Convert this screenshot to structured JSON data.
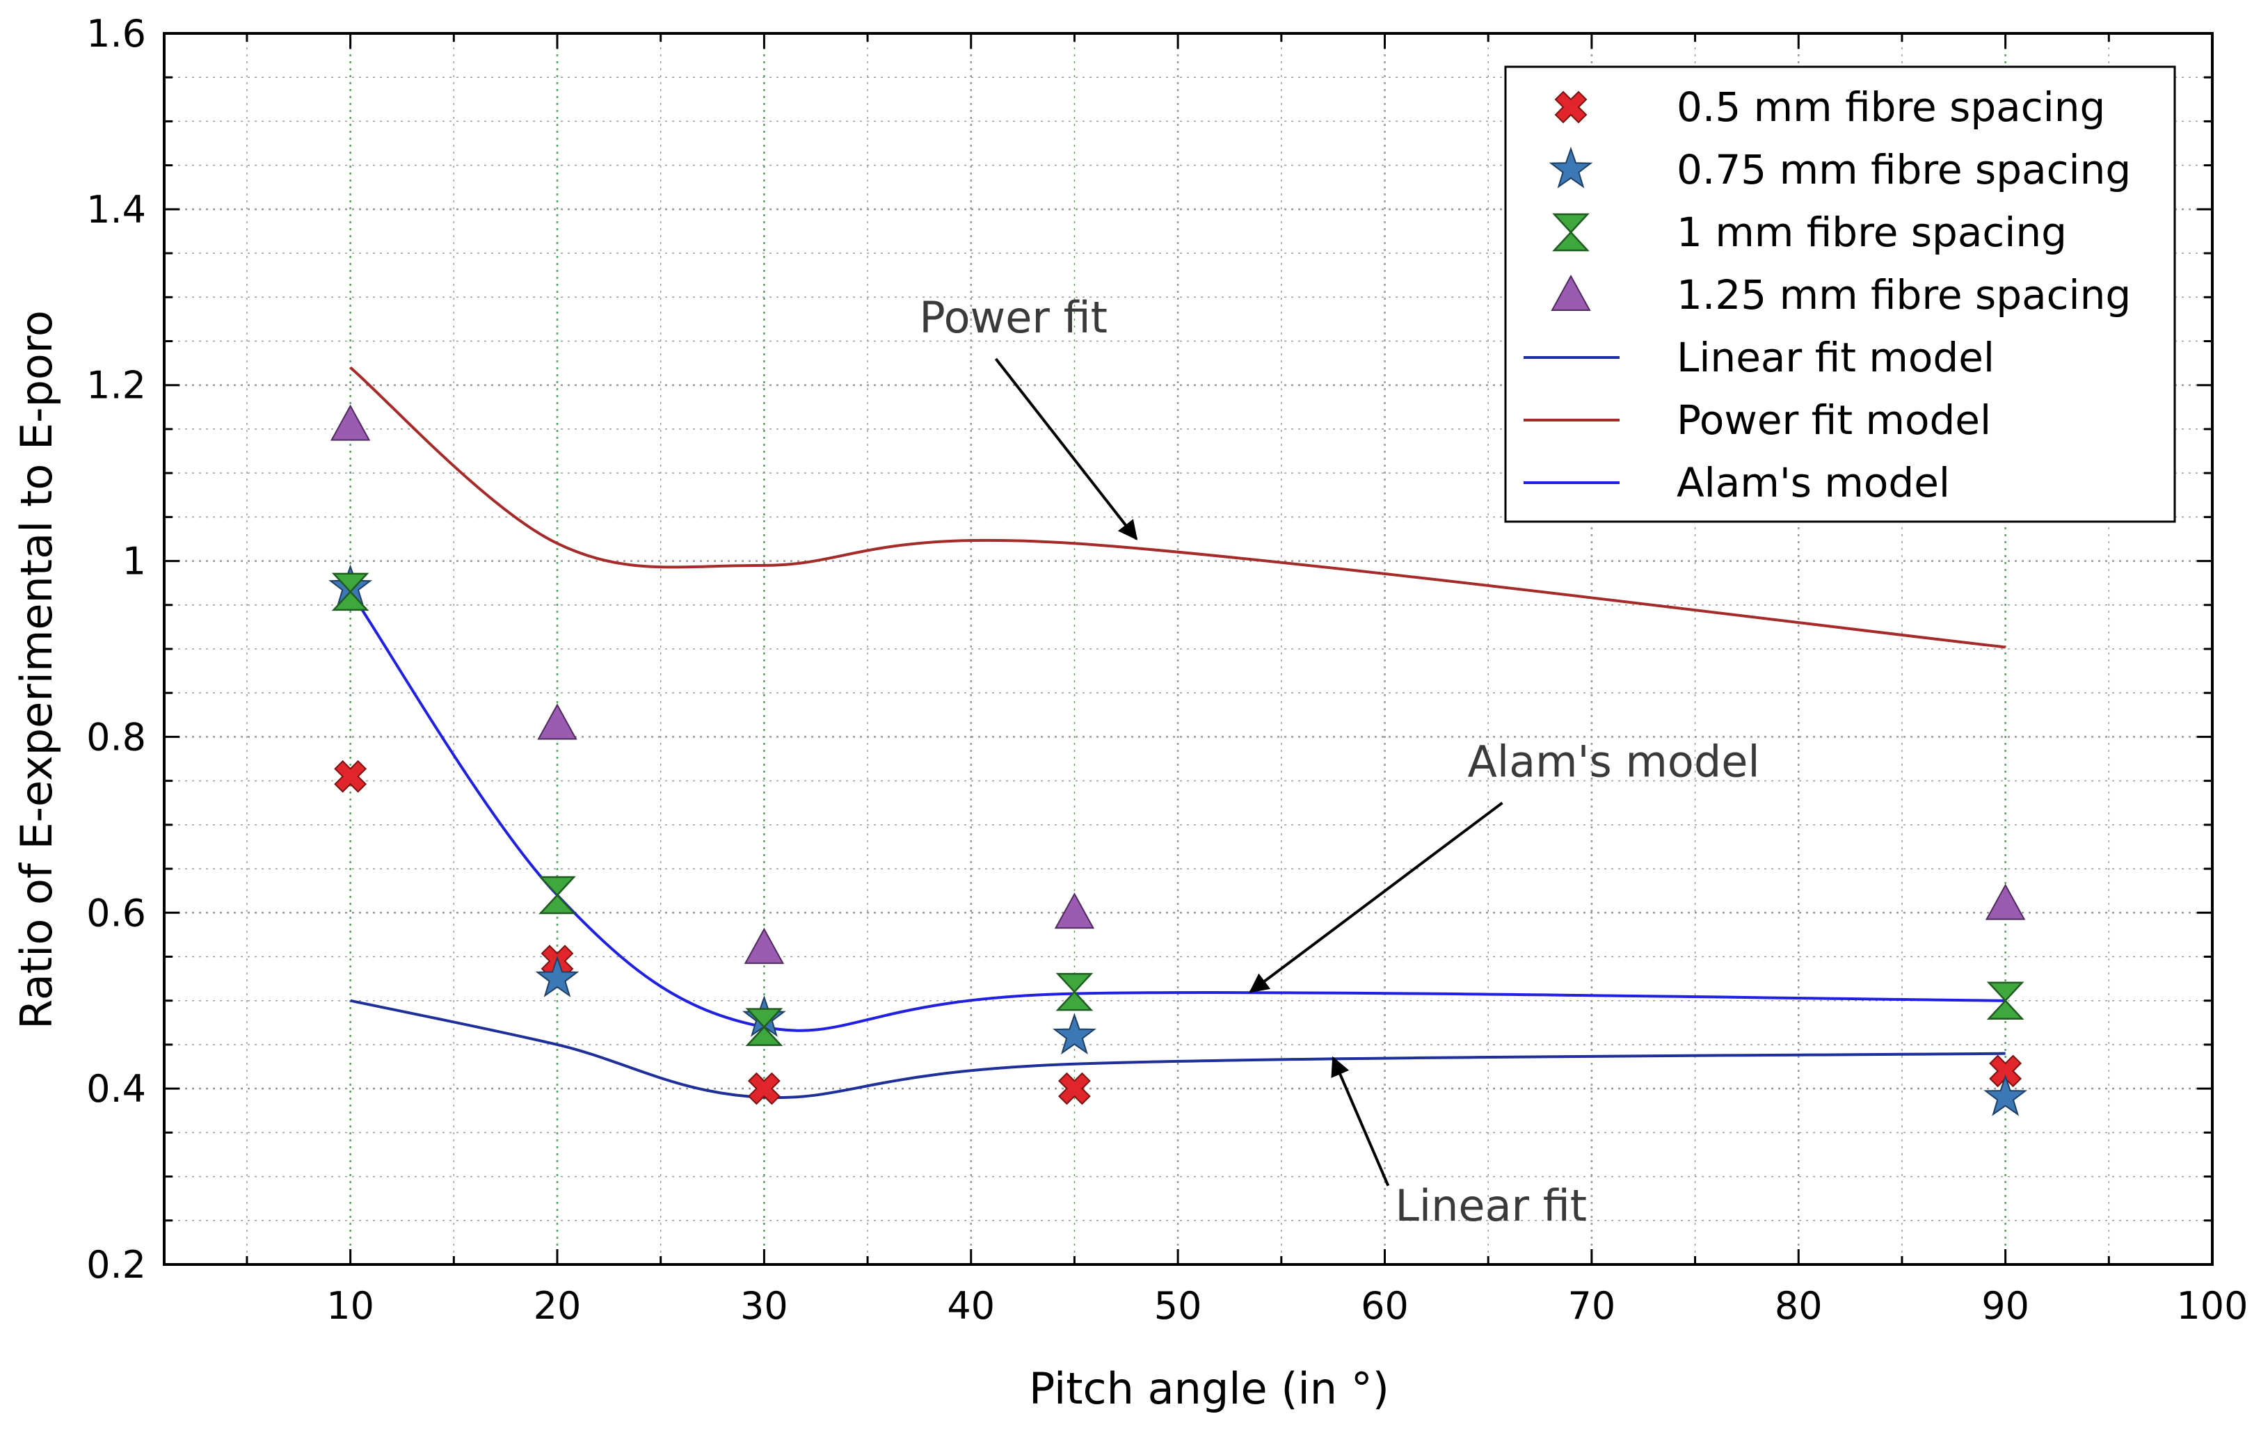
{
  "chart_data": {
    "type": "scatter",
    "title": "",
    "xlabel": "Pitch angle (in °)",
    "ylabel": "Ratio of  E-experimental to  E-poro",
    "xlim": [
      1,
      100
    ],
    "ylim": [
      0.2,
      1.6
    ],
    "x_ticks": [
      10,
      20,
      30,
      40,
      50,
      60,
      70,
      80,
      90,
      100
    ],
    "x_tick_labels": [
      "10",
      "20",
      "30",
      "40",
      "50",
      "60",
      "70",
      "80",
      "90",
      "100"
    ],
    "y_ticks": [
      0.2,
      0.4,
      0.6,
      0.8,
      1.0,
      1.2,
      1.4,
      1.6
    ],
    "y_tick_labels": [
      "0.2",
      "0.4",
      "0.6",
      "0.8",
      "1",
      "1.2",
      "1.4",
      "1.6"
    ],
    "grid": true,
    "legend_position": "top-right",
    "series": [
      {
        "name": "0.5 mm fibre spacing",
        "kind": "scatter",
        "marker": "x",
        "color": "#e0262b",
        "x": [
          10,
          20,
          30,
          45,
          90
        ],
        "y": [
          0.755,
          0.545,
          0.4,
          0.4,
          0.42
        ]
      },
      {
        "name": "0.75 mm fibre spacing",
        "kind": "scatter",
        "marker": "star",
        "color": "#3b78b5",
        "x": [
          10,
          20,
          30,
          45,
          90
        ],
        "y": [
          0.97,
          0.525,
          0.48,
          0.46,
          0.39
        ]
      },
      {
        "name": "1 mm fibre spacing",
        "kind": "scatter",
        "marker": "hourglass",
        "color": "#3ea83e",
        "x": [
          10,
          20,
          30,
          45,
          90
        ],
        "y": [
          0.965,
          0.62,
          0.47,
          0.51,
          0.5
        ]
      },
      {
        "name": "1.25 mm fibre spacing",
        "kind": "scatter",
        "marker": "triangle",
        "color": "#9a5bb0",
        "x": [
          10,
          20,
          30,
          45,
          90
        ],
        "y": [
          1.155,
          0.815,
          0.56,
          0.6,
          0.61
        ]
      },
      {
        "name": "Linear fit model",
        "kind": "line",
        "color": "#1f2f9a",
        "x": [
          10,
          20,
          30,
          45,
          90
        ],
        "y": [
          0.5,
          0.45,
          0.39,
          0.428,
          0.44
        ]
      },
      {
        "name": "Power fit model",
        "kind": "line",
        "color": "#a52a2a",
        "x": [
          10,
          20,
          30,
          45,
          90
        ],
        "y": [
          1.22,
          1.02,
          0.995,
          1.02,
          0.902
        ]
      },
      {
        "name": "Alam's model",
        "kind": "line",
        "color": "#2020e0",
        "x": [
          10,
          20,
          30,
          45,
          90
        ],
        "y": [
          0.965,
          0.62,
          0.47,
          0.508,
          0.5
        ]
      }
    ],
    "annotations": [
      {
        "text": "Power fit",
        "x": 37.5,
        "y": 1.26,
        "arrow_to": [
          48,
          1.025
        ]
      },
      {
        "text": "Alam's model",
        "x": 64,
        "y": 0.755,
        "arrow_to": [
          53.5,
          0.51
        ]
      },
      {
        "text": "Linear fit",
        "x": 60.5,
        "y": 0.25,
        "arrow_to": [
          57.5,
          0.435
        ]
      }
    ]
  }
}
